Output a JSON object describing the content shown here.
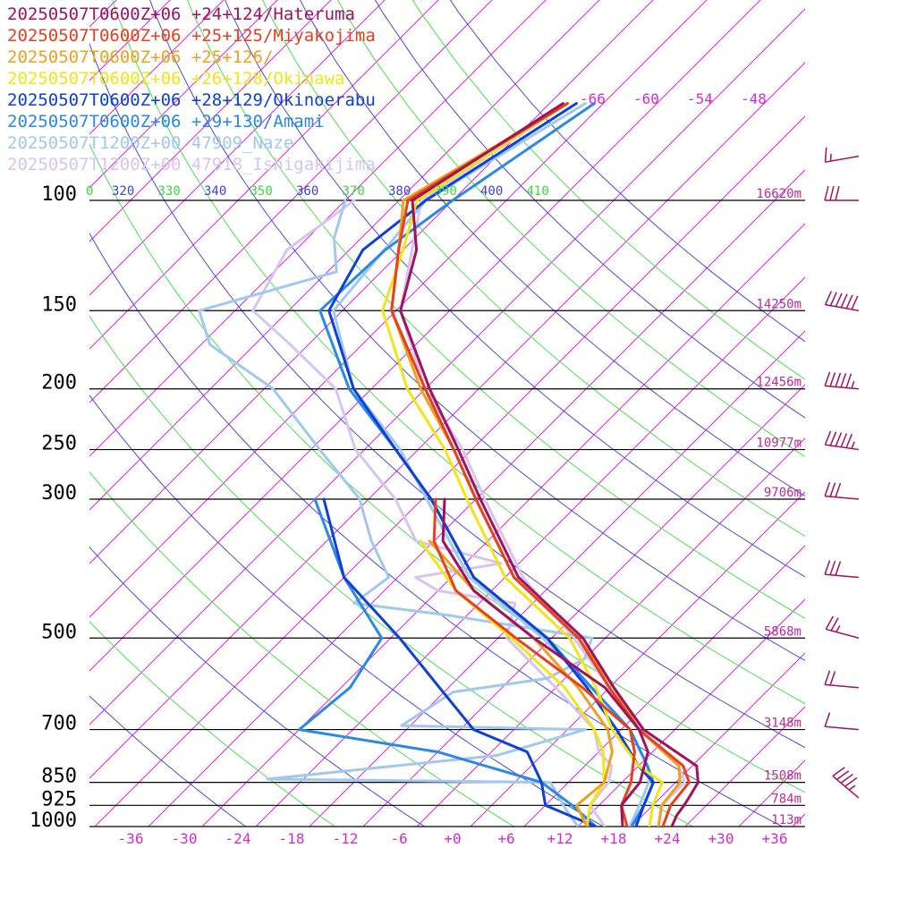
{
  "legend": [
    {
      "label": "20250507T0600Z+06 +24+124/Hateruma",
      "color": "#a0125e"
    },
    {
      "label": "20250507T0600Z+06 +25+125/Miyakojima",
      "color": "#e8401e"
    },
    {
      "label": "20250507T0600Z+06 +25+126/",
      "color": "#f0a020"
    },
    {
      "label": "20250507T0600Z+06 +26+128/Okinawa",
      "color": "#f2e418"
    },
    {
      "label": "20250507T0600Z+06 +28+129/Okinoerabu",
      "color": "#0c40d8"
    },
    {
      "label": "20250507T0600Z+06 +29+130/Amami",
      "color": "#2a88e6"
    },
    {
      "label": "20250507T1200Z+00 47909_Naze",
      "color": "#a0c8f0"
    },
    {
      "label": "20250507T1200Z+00 47918_Ishigakijima",
      "color": "#d8c4f0"
    }
  ],
  "chart_data": {
    "type": "line",
    "diagram": "skew-T log-p",
    "pressure_levels": [
      {
        "p": 100,
        "label": "100",
        "height": "16620m"
      },
      {
        "p": 150,
        "label": "150",
        "height": "14250m"
      },
      {
        "p": 200,
        "label": "200",
        "height": "12456m"
      },
      {
        "p": 250,
        "label": "250",
        "height": "10977m"
      },
      {
        "p": 300,
        "label": "300",
        "height": "9706m"
      },
      {
        "p": 500,
        "label": "500",
        "height": "5868m"
      },
      {
        "p": 700,
        "label": "700",
        "height": "3148m"
      },
      {
        "p": 850,
        "label": "850",
        "height": "1508m"
      },
      {
        "p": 925,
        "label": "925",
        "height": "784m"
      },
      {
        "p": 1000,
        "label": "1000",
        "height": "113m"
      }
    ],
    "x_ticks": [
      "-36",
      "-30",
      "-24",
      "-18",
      "-12",
      "-6",
      "+0",
      "+6",
      "+12",
      "+18",
      "+24",
      "+30",
      "+36"
    ],
    "x_tick_values": [
      -36,
      -30,
      -24,
      -18,
      -12,
      -6,
      0,
      6,
      12,
      18,
      24,
      30,
      36
    ],
    "upper_temp_labels": [
      "-66",
      "-60",
      "-54",
      "-48"
    ],
    "theta_labels": [
      {
        "text": "0",
        "color": "#3cd83c"
      },
      {
        "text": "320",
        "color": "#4040d8"
      },
      {
        "text": "330",
        "color": "#3cd83c"
      },
      {
        "text": "340",
        "color": "#4040d8"
      },
      {
        "text": "350",
        "color": "#3cd83c"
      },
      {
        "text": "360",
        "color": "#4040d8"
      },
      {
        "text": "370",
        "color": "#3cd83c"
      },
      {
        "text": "380",
        "color": "#4040d8"
      },
      {
        "text": "390",
        "color": "#3cd83c"
      },
      {
        "text": "400",
        "color": "#4040d8"
      },
      {
        "text": "410",
        "color": "#3cd83c"
      }
    ],
    "series": [
      {
        "name": "20250507T0600Z+06 +24+124/Hateruma",
        "color": "#a0125e",
        "temperature": [
          [
            1000,
            24.5
          ],
          [
            960,
            23.8
          ],
          [
            925,
            23.5
          ],
          [
            900,
            23.2
          ],
          [
            850,
            22.5
          ],
          [
            800,
            20.5
          ],
          [
            700,
            10.5
          ],
          [
            600,
            2.5
          ],
          [
            500,
            -6.5
          ],
          [
            400,
            -20.5
          ],
          [
            300,
            -33.5
          ],
          [
            250,
            -41.5
          ],
          [
            200,
            -51.5
          ],
          [
            150,
            -63.5
          ],
          [
            120,
            -68.5
          ],
          [
            100,
            -74.5
          ],
          [
            70,
            -68.5
          ]
        ],
        "dewpoint": [
          [
            1000,
            19.0
          ],
          [
            925,
            16.5
          ],
          [
            850,
            16.0
          ],
          [
            760,
            13.5
          ],
          [
            700,
            10.0
          ],
          [
            600,
            1.5
          ],
          [
            500,
            -12.0
          ],
          [
            420,
            -24.0
          ],
          [
            350,
            -33.0
          ],
          [
            300,
            -37.5
          ]
        ]
      },
      {
        "name": "20250507T0600Z+06 +25+125/Miyakojima",
        "color": "#e8401e",
        "temperature": [
          [
            1000,
            23.5
          ],
          [
            925,
            22.0
          ],
          [
            850,
            21.5
          ],
          [
            800,
            19.0
          ],
          [
            700,
            10.0
          ],
          [
            600,
            2.0
          ],
          [
            500,
            -7.0
          ],
          [
            400,
            -21.0
          ],
          [
            300,
            -34.0
          ],
          [
            250,
            -42.0
          ],
          [
            200,
            -52.0
          ],
          [
            150,
            -64.5
          ],
          [
            120,
            -70.5
          ],
          [
            100,
            -75.0
          ],
          [
            70,
            -68.0
          ]
        ],
        "dewpoint": [
          [
            1000,
            19.5
          ],
          [
            925,
            16.5
          ],
          [
            850,
            15.0
          ],
          [
            760,
            12.0
          ],
          [
            700,
            9.0
          ],
          [
            600,
            -1.0
          ],
          [
            500,
            -14.0
          ],
          [
            420,
            -26.0
          ],
          [
            350,
            -34.0
          ],
          [
            300,
            -38.5
          ]
        ]
      },
      {
        "name": "20250507T0600Z+06 +25+126/",
        "color": "#f0a020",
        "temperature": [
          [
            1000,
            23.0
          ],
          [
            925,
            21.0
          ],
          [
            850,
            20.5
          ],
          [
            800,
            18.5
          ],
          [
            700,
            10.0
          ],
          [
            600,
            2.5
          ],
          [
            500,
            -7.0
          ],
          [
            400,
            -21.0
          ],
          [
            300,
            -34.0
          ],
          [
            250,
            -42.0
          ],
          [
            200,
            -52.5
          ],
          [
            150,
            -64.5
          ],
          [
            120,
            -70.5
          ],
          [
            100,
            -75.5
          ],
          [
            70,
            -68.0
          ]
        ],
        "dewpoint": [
          [
            1000,
            15.0
          ],
          [
            925,
            11.5
          ],
          [
            850,
            12.0
          ],
          [
            760,
            9.5
          ],
          [
            700,
            6.5
          ],
          [
            600,
            -1.5
          ],
          [
            500,
            -12.0
          ],
          [
            420,
            -24.0
          ],
          [
            350,
            -34.5
          ]
        ]
      },
      {
        "name": "20250507T0600Z+06 +26+128/Okinawa",
        "color": "#f2e418",
        "temperature": [
          [
            1000,
            22.0
          ],
          [
            925,
            20.0
          ],
          [
            850,
            18.5
          ],
          [
            800,
            14.0
          ],
          [
            700,
            7.0
          ],
          [
            600,
            0.5
          ],
          [
            500,
            -8.0
          ],
          [
            400,
            -22.0
          ],
          [
            300,
            -35.0
          ],
          [
            250,
            -43.0
          ],
          [
            200,
            -54.0
          ],
          [
            150,
            -65.5
          ],
          [
            120,
            -70.0
          ],
          [
            100,
            -74.0
          ],
          [
            70,
            -68.0
          ]
        ],
        "dewpoint": [
          [
            1000,
            15.0
          ],
          [
            925,
            13.0
          ],
          [
            850,
            12.0
          ],
          [
            760,
            8.5
          ],
          [
            700,
            5.0
          ],
          [
            600,
            -3.0
          ],
          [
            500,
            -14.5
          ],
          [
            420,
            -26.0
          ],
          [
            350,
            -35.5
          ]
        ]
      },
      {
        "name": "20250507T0600Z+06 +28+129/Okinoerabu",
        "color": "#0c40d8",
        "temperature": [
          [
            1000,
            20.5
          ],
          [
            925,
            19.0
          ],
          [
            850,
            17.5
          ],
          [
            800,
            14.0
          ],
          [
            700,
            7.5
          ],
          [
            600,
            -0.5
          ],
          [
            500,
            -10.5
          ],
          [
            400,
            -25.5
          ],
          [
            300,
            -39.0
          ],
          [
            250,
            -48.5
          ],
          [
            200,
            -60.0
          ],
          [
            150,
            -71.5
          ],
          [
            120,
            -74.5
          ],
          [
            100,
            -73.0
          ],
          [
            70,
            -67.0
          ]
        ],
        "dewpoint": [
          [
            1000,
            16.0
          ],
          [
            925,
            8.0
          ],
          [
            850,
            5.0
          ],
          [
            760,
            0.0
          ],
          [
            700,
            -8.5
          ],
          [
            600,
            -17.0
          ],
          [
            500,
            -27.0
          ],
          [
            400,
            -40.0
          ],
          [
            300,
            -51.0
          ]
        ]
      },
      {
        "name": "20250507T0600Z+06 +29+130/Amami",
        "color": "#2a88e6",
        "temperature": [
          [
            1000,
            20.0
          ],
          [
            925,
            19.0
          ],
          [
            850,
            17.5
          ],
          [
            800,
            15.0
          ],
          [
            700,
            9.0
          ],
          [
            600,
            0.0
          ],
          [
            500,
            -10.5
          ],
          [
            400,
            -25.5
          ],
          [
            300,
            -39.0
          ],
          [
            250,
            -48.5
          ],
          [
            200,
            -60.5
          ],
          [
            150,
            -72.5
          ],
          [
            120,
            -72.0
          ],
          [
            100,
            -70.0
          ],
          [
            70,
            -65.0
          ]
        ],
        "dewpoint": [
          [
            1000,
            16.0
          ],
          [
            925,
            11.0
          ],
          [
            850,
            5.0
          ],
          [
            760,
            -10.0
          ],
          [
            700,
            -28.0
          ],
          [
            600,
            -27.0
          ],
          [
            500,
            -29.0
          ],
          [
            400,
            -40.0
          ],
          [
            300,
            -52.0
          ]
        ]
      },
      {
        "name": "20250507T1200Z+00 47909_Naze",
        "color": "#a0c8f0",
        "temperature": [
          [
            1000,
            19.8
          ],
          [
            925,
            18.5
          ],
          [
            850,
            17.0
          ],
          [
            800,
            15.0
          ],
          [
            700,
            9.0
          ],
          [
            600,
            0.0
          ],
          [
            500,
            -11.0
          ],
          [
            400,
            -26.0
          ],
          [
            300,
            -39.5
          ],
          [
            250,
            -48.0
          ],
          [
            200,
            -60.0
          ],
          [
            150,
            -71.0
          ],
          [
            100,
            -73.0
          ],
          [
            70,
            -66.0
          ]
        ],
        "dewpoint": [
          [
            1000,
            14.0
          ],
          [
            925,
            10.0
          ],
          [
            850,
            6.0
          ],
          [
            840,
            -26.0
          ],
          [
            770,
            -3.0
          ],
          [
            700,
            4.0
          ],
          [
            690,
            -17.0
          ],
          [
            610,
            -15.0
          ],
          [
            580,
            -6.0
          ],
          [
            540,
            -4.0
          ],
          [
            500,
            -5.5
          ],
          [
            460,
            -24.0
          ],
          [
            440,
            -36.0
          ],
          [
            400,
            -35.0
          ],
          [
            350,
            -41.0
          ],
          [
            300,
            -47.0
          ],
          [
            250,
            -57.0
          ],
          [
            200,
            -69.0
          ],
          [
            170,
            -81.0
          ],
          [
            150,
            -86.0
          ],
          [
            130,
            -75.0
          ],
          [
            115,
            -79.0
          ],
          [
            100,
            -82.0
          ]
        ]
      },
      {
        "name": "20250507T1200Z+00 47918_Ishigakijima",
        "color": "#d8c4f0",
        "temperature": [
          [
            1000,
            23.0
          ],
          [
            925,
            21.0
          ],
          [
            850,
            21.0
          ],
          [
            800,
            18.5
          ],
          [
            700,
            10.0
          ],
          [
            600,
            2.0
          ],
          [
            500,
            -7.5
          ],
          [
            400,
            -20.0
          ],
          [
            300,
            -33.0
          ],
          [
            250,
            -41.0
          ],
          [
            200,
            -52.0
          ],
          [
            150,
            -63.5
          ],
          [
            100,
            -73.5
          ],
          [
            70,
            -68.0
          ]
        ],
        "dewpoint": [
          [
            1000,
            17.0
          ],
          [
            925,
            13.0
          ],
          [
            850,
            12.5
          ],
          [
            800,
            11.0
          ],
          [
            760,
            8.0
          ],
          [
            700,
            5.0
          ],
          [
            600,
            -4.0
          ],
          [
            500,
            -15.0
          ],
          [
            440,
            -18.0
          ],
          [
            420,
            -28.0
          ],
          [
            400,
            -32.0
          ],
          [
            380,
            -24.0
          ],
          [
            350,
            -36.0
          ],
          [
            300,
            -43.0
          ],
          [
            250,
            -53.0
          ],
          [
            200,
            -62.0
          ],
          [
            170,
            -72.0
          ],
          [
            150,
            -80.0
          ],
          [
            120,
            -83.0
          ],
          [
            100,
            -81.0
          ]
        ]
      }
    ],
    "wind_barbs": [
      {
        "p": 85,
        "speed_kt": 15,
        "dir": 280
      },
      {
        "p": 100,
        "speed_kt": 30,
        "dir": 270
      },
      {
        "p": 150,
        "speed_kt": 60,
        "dir": 260
      },
      {
        "p": 200,
        "speed_kt": 55,
        "dir": 265
      },
      {
        "p": 250,
        "speed_kt": 55,
        "dir": 262
      },
      {
        "p": 300,
        "speed_kt": 30,
        "dir": 265
      },
      {
        "p": 400,
        "speed_kt": 30,
        "dir": 265
      },
      {
        "p": 500,
        "speed_kt": 25,
        "dir": 255
      },
      {
        "p": 600,
        "speed_kt": 20,
        "dir": 265
      },
      {
        "p": 700,
        "speed_kt": 10,
        "dir": 265
      },
      {
        "p": 900,
        "speed_kt": 45,
        "dir": 230
      }
    ]
  }
}
